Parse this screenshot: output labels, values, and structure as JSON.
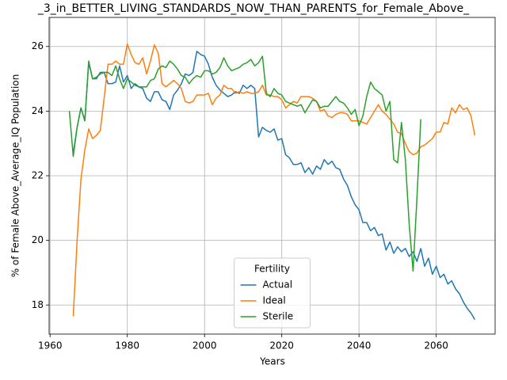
{
  "chart_data": {
    "type": "line",
    "title": "_3_in_BETTER_LIVING_STANDARDS_NOW_THAN_PARENTS_for_Female_Above_",
    "xlabel": "Years",
    "ylabel": "% of Female Above_Average_IQ Population",
    "xlim": [
      1959.75,
      2075.25
    ],
    "ylim": [
      17.1,
      26.9
    ],
    "xticks": [
      1960,
      1980,
      2000,
      2020,
      2040,
      2060
    ],
    "yticks": [
      18,
      20,
      22,
      24,
      26
    ],
    "grid": true,
    "legend_title": "Fertility",
    "legend_position": "lower center",
    "x": [
      1965,
      1966,
      1967,
      1968,
      1969,
      1970,
      1971,
      1972,
      1973,
      1974,
      1975,
      1976,
      1977,
      1978,
      1979,
      1980,
      1981,
      1982,
      1983,
      1984,
      1985,
      1986,
      1987,
      1988,
      1989,
      1990,
      1991,
      1992,
      1993,
      1994,
      1995,
      1996,
      1997,
      1998,
      1999,
      2000,
      2001,
      2002,
      2003,
      2004,
      2005,
      2006,
      2007,
      2008,
      2009,
      2010,
      2011,
      2012,
      2013,
      2014,
      2015,
      2016,
      2017,
      2018,
      2019,
      2020,
      2021,
      2022,
      2023,
      2024,
      2025,
      2026,
      2027,
      2028,
      2029,
      2030,
      2031,
      2032,
      2033,
      2034,
      2035,
      2036,
      2037,
      2038,
      2039,
      2040,
      2041,
      2042,
      2043,
      2044,
      2045,
      2046,
      2047,
      2048,
      2049,
      2050,
      2051,
      2052,
      2053,
      2054,
      2055,
      2056,
      2057,
      2058,
      2059,
      2060,
      2061,
      2062,
      2063,
      2064,
      2065,
      2066,
      2067,
      2068,
      2069,
      2070
    ],
    "series": [
      {
        "name": "Actual",
        "color": "#1f77b4",
        "values": [
          null,
          22.7,
          23.5,
          24.1,
          23.7,
          25.5,
          25.0,
          25.0,
          25.2,
          25.2,
          24.85,
          24.85,
          24.9,
          25.4,
          24.9,
          25.1,
          24.7,
          24.85,
          24.75,
          24.7,
          24.4,
          24.3,
          24.6,
          24.6,
          24.35,
          24.3,
          24.05,
          24.5,
          24.65,
          24.85,
          25.15,
          25.1,
          25.2,
          25.85,
          25.75,
          25.7,
          25.45,
          25.05,
          24.8,
          24.65,
          24.55,
          24.45,
          24.5,
          24.6,
          24.55,
          24.8,
          24.7,
          24.8,
          24.7,
          23.2,
          23.5,
          23.4,
          23.35,
          23.45,
          23.1,
          23.15,
          22.65,
          22.55,
          22.35,
          22.35,
          22.4,
          22.1,
          22.25,
          22.05,
          22.3,
          22.2,
          22.5,
          22.35,
          22.45,
          22.25,
          22.2,
          21.9,
          21.7,
          21.35,
          21.1,
          20.95,
          20.55,
          20.55,
          20.3,
          20.4,
          20.15,
          20.2,
          19.7,
          19.95,
          19.6,
          19.8,
          19.65,
          19.75,
          19.5,
          19.65,
          19.35,
          19.75,
          19.2,
          19.45,
          18.95,
          19.2,
          18.85,
          18.95,
          18.65,
          18.75,
          18.5,
          18.35,
          18.1,
          17.9,
          17.75,
          17.55
        ]
      },
      {
        "name": "Ideal",
        "color": "#ff7f0e",
        "values": [
          null,
          17.65,
          20.0,
          21.9,
          22.8,
          23.45,
          23.15,
          23.25,
          23.4,
          24.4,
          25.45,
          25.45,
          25.55,
          25.45,
          25.45,
          26.08,
          25.75,
          25.5,
          25.45,
          25.65,
          25.15,
          25.55,
          26.05,
          25.8,
          24.85,
          24.75,
          24.85,
          24.95,
          24.85,
          24.7,
          24.3,
          24.25,
          24.3,
          24.5,
          24.5,
          24.5,
          24.55,
          24.2,
          24.4,
          24.5,
          24.8,
          24.7,
          24.7,
          24.55,
          24.6,
          24.55,
          24.6,
          24.55,
          24.55,
          24.6,
          24.8,
          24.5,
          24.5,
          24.45,
          24.45,
          24.35,
          24.1,
          24.2,
          24.3,
          24.25,
          24.45,
          24.45,
          24.45,
          24.4,
          24.3,
          24.0,
          24.05,
          23.85,
          23.8,
          23.9,
          23.95,
          23.95,
          23.9,
          23.7,
          23.7,
          23.7,
          23.65,
          23.6,
          23.8,
          24.0,
          24.2,
          24.0,
          23.9,
          23.75,
          23.6,
          23.35,
          23.3,
          23.0,
          22.75,
          22.65,
          22.7,
          22.9,
          22.95,
          23.05,
          23.15,
          23.35,
          23.35,
          23.65,
          23.6,
          24.1,
          23.95,
          24.2,
          24.05,
          24.1,
          23.85,
          23.25
        ]
      },
      {
        "name": "Sterile",
        "color": "#2ca02c",
        "values": [
          24.0,
          22.6,
          23.5,
          24.1,
          23.7,
          25.55,
          25.0,
          25.05,
          25.15,
          25.2,
          25.2,
          25.1,
          25.4,
          25.0,
          24.7,
          25.0,
          24.9,
          24.8,
          24.75,
          24.75,
          24.75,
          24.95,
          25.0,
          25.3,
          25.4,
          25.35,
          25.55,
          25.45,
          25.3,
          25.1,
          25.05,
          24.85,
          25.0,
          25.1,
          25.05,
          25.25,
          25.25,
          25.15,
          25.2,
          25.35,
          25.65,
          25.4,
          25.25,
          25.3,
          25.35,
          25.45,
          25.5,
          25.6,
          25.4,
          25.5,
          25.7,
          24.55,
          24.45,
          24.7,
          24.55,
          24.5,
          24.3,
          24.25,
          24.2,
          24.15,
          24.2,
          23.95,
          24.15,
          24.35,
          24.3,
          24.1,
          24.15,
          24.15,
          24.3,
          24.45,
          24.3,
          24.25,
          24.1,
          23.9,
          24.05,
          23.55,
          23.85,
          24.45,
          24.9,
          24.7,
          24.6,
          24.5,
          24.0,
          24.3,
          22.5,
          22.4,
          23.65,
          22.5,
          20.5,
          19.05,
          21.3,
          23.75,
          null,
          null,
          null,
          null,
          null,
          null,
          null,
          null,
          null,
          null,
          null,
          null,
          null,
          null
        ]
      }
    ]
  }
}
